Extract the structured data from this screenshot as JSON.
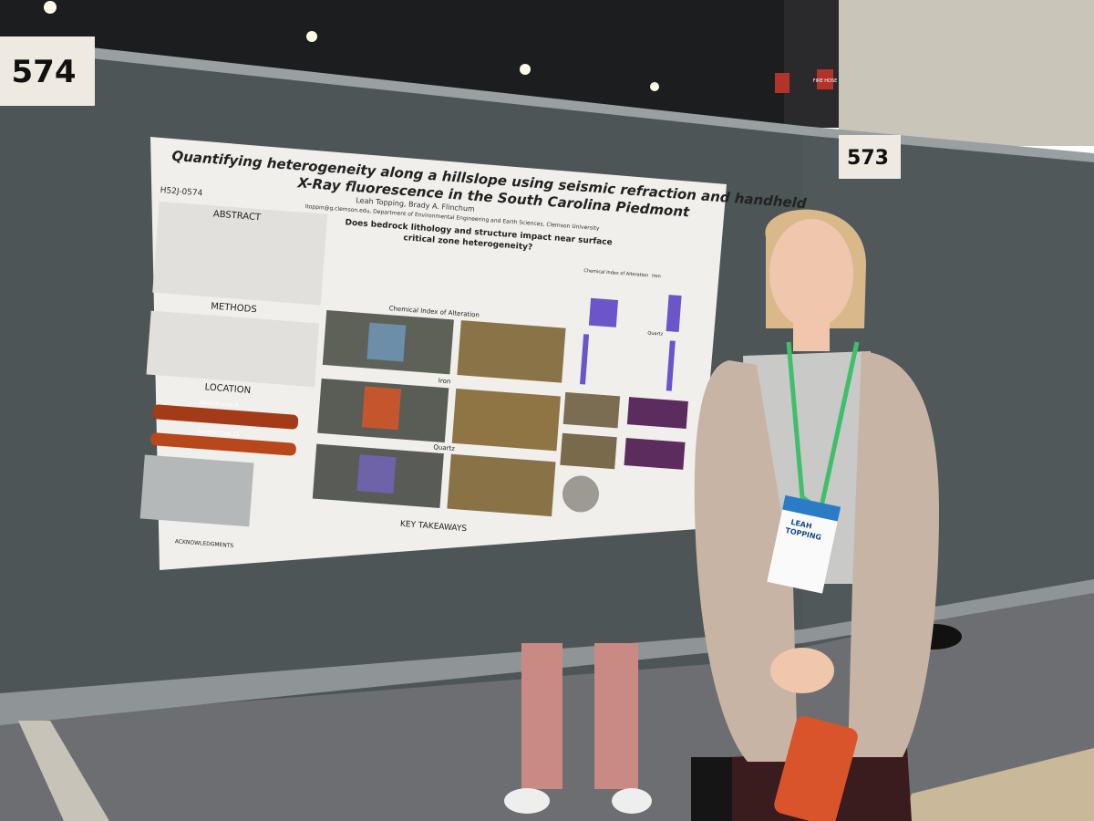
{
  "board_numbers": [
    "574",
    "573"
  ],
  "signs": {
    "fire_hose": "FIRE HOSE"
  },
  "poster": {
    "title_lines": [
      "Quantifying heterogeneity along a hillslope using seismic refraction and handheld",
      "X-Ray fluorescence in the South Carolina Piedmont"
    ],
    "code": "H52J-0574",
    "authors": "Leah Topping, Brady A. Flinchum",
    "affiliation": "ltoppin@g.clemson.edu, Department of Environmental Engineering and Earth Sciences, Clemson University",
    "sections": {
      "abstract": "ABSTRACT",
      "methods": "METHODS",
      "location": "LOCATION",
      "acknowledgments": "ACKNOWLEDGMENTS",
      "key_takeaways": "KEY TAKEAWAYS"
    },
    "question": [
      "Does bedrock lithology and structure impact near surface",
      "critical zone heterogeneity?"
    ],
    "panel_labels": {
      "cia": "Chemical Index of Alteration",
      "iron": "Iron",
      "quartz": "Quartz",
      "line8": "Seismic Line 8",
      "line11": "Seismic Line 11",
      "cia_small": "Chemical Index of Alteration",
      "iron_small": "Iron",
      "quartz_small": "Quartz"
    }
  },
  "badge": {
    "name_lines": [
      "LEAH",
      "TOPPING"
    ]
  }
}
